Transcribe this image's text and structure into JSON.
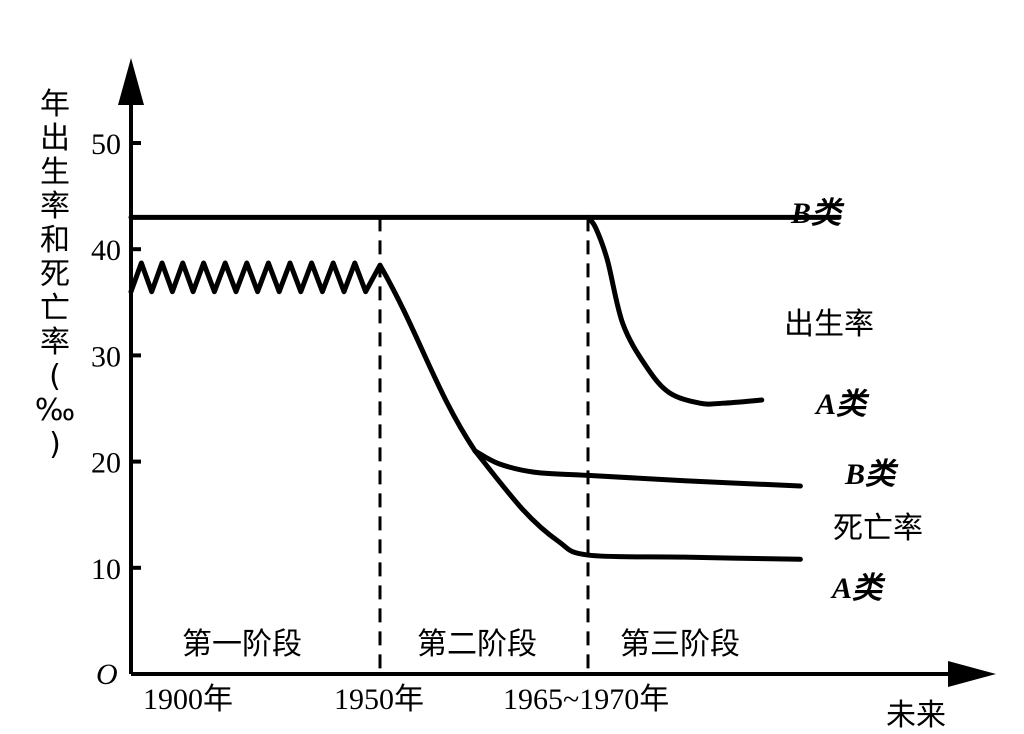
{
  "chart_data": {
    "type": "line",
    "title": "",
    "ylabel": "年出生率和死亡率(‰)",
    "xlabel": "未来",
    "origin_label": "O",
    "ylim": [
      0,
      50
    ],
    "yticks": [
      10,
      20,
      30,
      40,
      50
    ],
    "x_markers": [
      {
        "label": "1900年",
        "x": 1900
      },
      {
        "label": "1950年",
        "x": 1950
      },
      {
        "label": "1965~1970年",
        "x": 1967.5
      }
    ],
    "stages": [
      {
        "label": "第一阶段",
        "x_range": [
          1880,
          1950
        ]
      },
      {
        "label": "第二阶段",
        "x_range": [
          1950,
          1967.5
        ]
      },
      {
        "label": "第三阶段",
        "x_range": [
          1967.5,
          2000
        ]
      }
    ],
    "group_labels": {
      "birth": "出生率",
      "death": "死亡率"
    },
    "series": [
      {
        "name": "B类",
        "group": "birth",
        "x": [
          1880,
          2000
        ],
        "y": [
          43,
          43
        ]
      },
      {
        "name": "A类",
        "group": "birth",
        "x": [
          1967.5,
          1968.5,
          1970,
          1972,
          1975,
          1978,
          1982,
          1985,
          1990
        ],
        "y": [
          43,
          42,
          39,
          33,
          29,
          26.5,
          25.5,
          25.5,
          25.8
        ]
      },
      {
        "name": "B类",
        "group": "death",
        "x": [
          1958,
          1960,
          1963,
          1967.5,
          1980,
          1995
        ],
        "y": [
          21,
          19.8,
          19,
          18.7,
          18.2,
          17.7
        ]
      },
      {
        "name": "A类",
        "group": "death",
        "x": [
          1958,
          1962,
          1965,
          1967.5,
          1980,
          1995
        ],
        "y": [
          21,
          15.5,
          12.5,
          11.2,
          11,
          10.8
        ]
      },
      {
        "name": "",
        "group": "early",
        "x": [
          1880,
          1883,
          1886,
          1889,
          1892,
          1895,
          1898,
          1901,
          1904,
          1907,
          1910,
          1913,
          1916,
          1919,
          1922,
          1925,
          1928,
          1931,
          1934,
          1937,
          1940,
          1943,
          1946,
          1950,
          1958
        ],
        "y": [
          36,
          38.7,
          36,
          38.7,
          36,
          38.7,
          36,
          38.7,
          36,
          38.7,
          36,
          38.7,
          36,
          38.7,
          36,
          38.7,
          36,
          38.7,
          36,
          38.7,
          36,
          38.7,
          36,
          38.5,
          21
        ]
      }
    ]
  }
}
